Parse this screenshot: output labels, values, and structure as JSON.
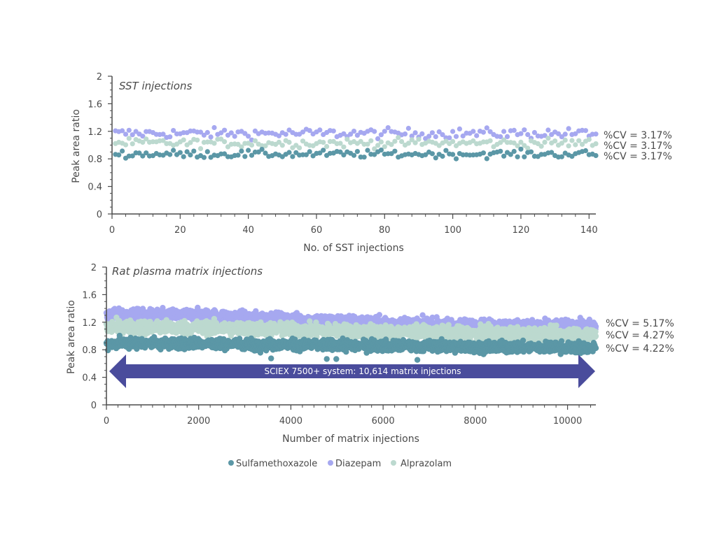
{
  "colors": {
    "sulfamethoxazole": "#5b97a6",
    "diazepam": "#a6a8f0",
    "alprazolam": "#bcd9cf",
    "axis": "#4a4a4a",
    "arrow": "#4a4c9c"
  },
  "legend": [
    {
      "name": "Sulfamethoxazole",
      "color": "#5b97a6"
    },
    {
      "name": "Diazepam",
      "color": "#a6a8f0"
    },
    {
      "name": "Alprazolam",
      "color": "#bcd9cf"
    }
  ],
  "chart_data": [
    {
      "type": "scatter",
      "title": "SST injections",
      "xlabel": "No. of SST injections",
      "ylabel": "Peak area ratio",
      "xlim": [
        0,
        142
      ],
      "ylim": [
        0,
        2
      ],
      "x_ticks": [
        "0",
        "20",
        "40",
        "60",
        "80",
        "100",
        "120",
        "140"
      ],
      "y_ticks": [
        "0",
        "0.4",
        "0.8",
        "1.2",
        "1.6",
        "2"
      ],
      "n_points": 142,
      "series": [
        {
          "name": "Diazepam",
          "mean": 1.17,
          "spread": 0.037,
          "cv_label": "%CV = 3.17%"
        },
        {
          "name": "Alprazolam",
          "mean": 1.03,
          "spread": 0.033,
          "cv_label": "%CV = 3.17%"
        },
        {
          "name": "Sulfamethoxazole",
          "mean": 0.87,
          "spread": 0.028,
          "cv_label": "%CV = 3.17%"
        }
      ]
    },
    {
      "type": "scatter",
      "title": "Rat plasma matrix injections",
      "xlabel": "Number of matrix injections",
      "ylabel": "Peak area ratio",
      "xlim": [
        0,
        10614
      ],
      "ylim": [
        0,
        2
      ],
      "x_ticks": [
        "0",
        "2000",
        "4000",
        "6000",
        "8000",
        "10000"
      ],
      "y_ticks": [
        "0",
        "0.4",
        "0.8",
        "1.2",
        "1.6",
        "2"
      ],
      "n_points": 10614,
      "annotation": "SCIEX 7500+ system: 10,614 matrix injections",
      "series": [
        {
          "name": "Diazepam",
          "trend": [
            [
              0,
              1.3
            ],
            [
              2000,
              1.3
            ],
            [
              4000,
              1.24
            ],
            [
              6000,
              1.19
            ],
            [
              8000,
              1.15
            ],
            [
              10614,
              1.14
            ]
          ],
          "spread": 0.045,
          "cv_label": "%CV = 5.17%"
        },
        {
          "name": "Alprazolam",
          "trend": [
            [
              0,
              1.13
            ],
            [
              2000,
              1.12
            ],
            [
              4000,
              1.09
            ],
            [
              6000,
              1.06
            ],
            [
              8000,
              1.03
            ],
            [
              10614,
              1.02
            ]
          ],
          "spread": 0.05,
          "cv_label": "%CV = 4.27%"
        },
        {
          "name": "Sulfamethoxazole",
          "trend": [
            [
              0,
              0.9
            ],
            [
              2000,
              0.89
            ],
            [
              4000,
              0.87
            ],
            [
              6000,
              0.86
            ],
            [
              8000,
              0.84
            ],
            [
              10614,
              0.83
            ]
          ],
          "spread": 0.04,
          "cv_label": "%CV = 4.22%"
        }
      ]
    }
  ]
}
